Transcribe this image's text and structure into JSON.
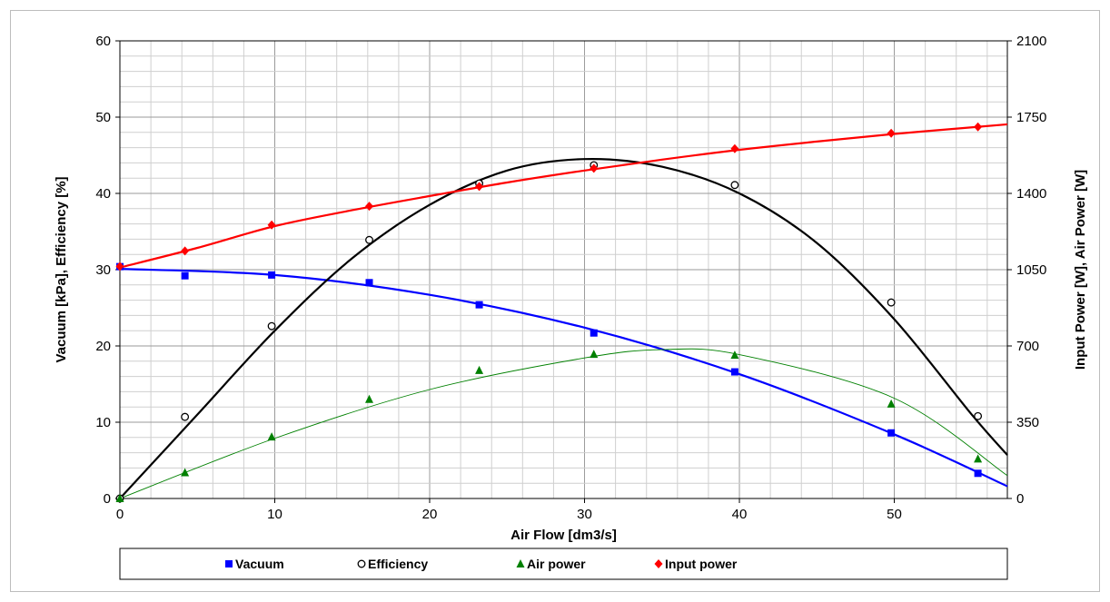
{
  "chart_data": {
    "type": "scatter",
    "xlabel": "Air Flow [dm3/s]",
    "ylabel_left": "Vacuum [kPa], Efficiency [%]",
    "ylabel_right": "Input Power [W], Air Power [W]",
    "xlim": [
      0,
      57.3
    ],
    "ylim_left": [
      0,
      60
    ],
    "ylim_right": [
      0,
      2100
    ],
    "x_ticks": [
      "0",
      "10",
      "20",
      "30",
      "40",
      "50"
    ],
    "y_left_ticks": [
      "0",
      "10",
      "20",
      "30",
      "40",
      "50",
      "60"
    ],
    "y_right_ticks": [
      "0",
      "350",
      "700",
      "1050",
      "1400",
      "1750",
      "2100"
    ],
    "grid": true,
    "legend_position": "bottom",
    "series": [
      {
        "name": "Vacuum",
        "axis": "left",
        "color": "#0000ff",
        "marker": "square",
        "x": [
          0,
          4.2,
          9.8,
          16.1,
          23.2,
          30.6,
          39.7,
          49.8,
          55.4
        ],
        "y": [
          30.4,
          29.2,
          29.3,
          28.3,
          25.4,
          21.7,
          16.6,
          8.6,
          3.3
        ],
        "fit": [
          [
            0,
            30.1
          ],
          [
            10,
            29.3
          ],
          [
            20,
            26.7
          ],
          [
            30,
            22.4
          ],
          [
            40,
            16.3
          ],
          [
            50,
            8.4
          ],
          [
            57.3,
            1.6
          ]
        ]
      },
      {
        "name": "Efficiency",
        "axis": "left",
        "color": "#000000",
        "marker": "circle",
        "x": [
          0,
          4.2,
          9.8,
          16.1,
          23.2,
          30.6,
          39.7,
          49.8,
          55.4
        ],
        "y": [
          0,
          10.7,
          22.6,
          33.9,
          41.3,
          43.7,
          41.1,
          25.7,
          10.8
        ],
        "fit": [
          [
            0,
            0
          ],
          [
            5,
            11
          ],
          [
            10,
            22
          ],
          [
            15,
            31.5
          ],
          [
            20,
            38.5
          ],
          [
            25,
            43
          ],
          [
            30,
            44.5
          ],
          [
            35,
            43.5
          ],
          [
            40,
            40
          ],
          [
            45,
            33.5
          ],
          [
            50,
            23.5
          ],
          [
            55,
            11
          ],
          [
            57.3,
            5.7
          ]
        ]
      },
      {
        "name": "Air power",
        "axis": "right",
        "color": "#008000",
        "marker": "triangle",
        "x": [
          0,
          4.2,
          9.8,
          16.1,
          23.2,
          30.6,
          39.7,
          49.8,
          55.4
        ],
        "y": [
          0,
          119,
          283,
          455,
          588,
          662,
          658,
          434,
          182
        ],
        "fit": [
          [
            0,
            0
          ],
          [
            10,
            276
          ],
          [
            20,
            500
          ],
          [
            30,
            645
          ],
          [
            35,
            683
          ],
          [
            40,
            660
          ],
          [
            50,
            460
          ],
          [
            57.3,
            105
          ]
        ]
      },
      {
        "name": "Input power",
        "axis": "right",
        "color": "#ff0000",
        "marker": "diamond",
        "x": [
          0,
          4.2,
          9.8,
          16.1,
          23.2,
          30.6,
          39.7,
          49.8,
          55.4
        ],
        "y": [
          1065,
          1136,
          1255,
          1341,
          1432,
          1515,
          1605,
          1676,
          1705
        ],
        "fit": [
          [
            0,
            1060
          ],
          [
            5,
            1150
          ],
          [
            10,
            1250
          ],
          [
            15,
            1323
          ],
          [
            20,
            1388
          ],
          [
            25,
            1450
          ],
          [
            30,
            1505
          ],
          [
            35,
            1555
          ],
          [
            40,
            1600
          ],
          [
            45,
            1638
          ],
          [
            50,
            1673
          ],
          [
            55,
            1703
          ],
          [
            57.3,
            1717
          ]
        ]
      }
    ]
  }
}
